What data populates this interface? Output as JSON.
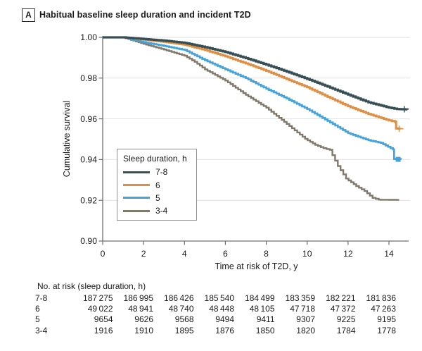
{
  "panel": {
    "label": "A",
    "title": "Habitual baseline sleep duration and incident T2D"
  },
  "chart_data": {
    "type": "line",
    "subtype": "kaplan-meier-cumulative-survival",
    "title": "Habitual baseline sleep duration and incident T2D",
    "xlabel": "Time at risk of T2D, y",
    "ylabel": "Cumulative survival",
    "xlim": [
      0,
      15.05
    ],
    "ylim": [
      0.9,
      1.0
    ],
    "x_ticks": [
      0,
      2,
      4,
      6,
      8,
      10,
      12,
      14
    ],
    "y_ticks": [
      "1.00",
      "0.98",
      "0.96",
      "0.94",
      "0.92",
      "0.90"
    ],
    "grid": "horizontal",
    "colors": {
      "axis": "#6f6f6f",
      "gridline": "#e2e2e2",
      "text": "#1a1a1a"
    },
    "legend": {
      "title": "Sleep duration, h",
      "position": "inside-left-middle"
    },
    "series": [
      {
        "name": "3-4",
        "color": "#80796B",
        "width": 2.4,
        "marker": "none",
        "points": [
          [
            0,
            1
          ],
          [
            1,
            1
          ],
          [
            1.5,
            0.9984
          ],
          [
            2,
            0.9968
          ],
          [
            3,
            0.994
          ],
          [
            4,
            0.991
          ],
          [
            4.5,
            0.988
          ],
          [
            5,
            0.9843
          ],
          [
            6,
            0.9788
          ],
          [
            7,
            0.9718
          ],
          [
            8,
            0.9655
          ],
          [
            9,
            0.9575
          ],
          [
            9.9,
            0.9502
          ],
          [
            10.4,
            0.9472
          ],
          [
            10.8,
            0.9456
          ],
          [
            11.1,
            0.9448
          ],
          [
            11.5,
            0.9368
          ],
          [
            11.9,
            0.9307
          ],
          [
            12.4,
            0.927
          ],
          [
            12.8,
            0.9246
          ],
          [
            13.2,
            0.9212
          ],
          [
            13.5,
            0.9203
          ],
          [
            14.5,
            0.9202
          ]
        ]
      },
      {
        "name": "5",
        "color": "#45A3DC",
        "width": 2.7,
        "marker": "square",
        "marker_at": [
          14.45,
          0.9401
        ],
        "points": [
          [
            0,
            1
          ],
          [
            1,
            1
          ],
          [
            1.5,
            0.9988
          ],
          [
            2,
            0.9976
          ],
          [
            3,
            0.9958
          ],
          [
            4,
            0.9938
          ],
          [
            5,
            0.9888
          ],
          [
            6,
            0.9843
          ],
          [
            7,
            0.98
          ],
          [
            8,
            0.9748
          ],
          [
            9,
            0.97
          ],
          [
            10,
            0.9648
          ],
          [
            11,
            0.959
          ],
          [
            12,
            0.953
          ],
          [
            13,
            0.9495
          ],
          [
            13.6,
            0.9482
          ],
          [
            14.2,
            0.945
          ],
          [
            14.25,
            0.9403
          ],
          [
            14.6,
            0.9401
          ]
        ]
      },
      {
        "name": "6",
        "color": "#DF8F44",
        "width": 3.0,
        "marker": "plus",
        "marker_at": [
          14.5,
          0.9551
        ],
        "points": [
          [
            0,
            1
          ],
          [
            1,
            1
          ],
          [
            1.5,
            0.9995
          ],
          [
            2,
            0.9989
          ],
          [
            3,
            0.9978
          ],
          [
            4,
            0.9964
          ],
          [
            5,
            0.9938
          ],
          [
            6,
            0.9907
          ],
          [
            7,
            0.9872
          ],
          [
            8,
            0.9836
          ],
          [
            9,
            0.9795
          ],
          [
            10,
            0.9755
          ],
          [
            11,
            0.9708
          ],
          [
            12,
            0.9662
          ],
          [
            13,
            0.9624
          ],
          [
            14,
            0.9592
          ],
          [
            14.3,
            0.9586
          ],
          [
            14.35,
            0.9553
          ],
          [
            14.55,
            0.955
          ]
        ]
      },
      {
        "name": "7-8",
        "color": "#374E55",
        "width": 3.2,
        "marker": "plus",
        "marker_at": [
          14.75,
          0.9647
        ],
        "points": [
          [
            0,
            1
          ],
          [
            1,
            1
          ],
          [
            1.5,
            0.9996
          ],
          [
            2,
            0.9992
          ],
          [
            3,
            0.9984
          ],
          [
            4,
            0.9973
          ],
          [
            5,
            0.9952
          ],
          [
            6,
            0.9928
          ],
          [
            7,
            0.9898
          ],
          [
            8,
            0.9866
          ],
          [
            9,
            0.9832
          ],
          [
            10,
            0.9796
          ],
          [
            11,
            0.9758
          ],
          [
            12,
            0.9719
          ],
          [
            13,
            0.9681
          ],
          [
            14,
            0.9655
          ],
          [
            14.4,
            0.9648
          ],
          [
            14.9,
            0.9646
          ]
        ]
      }
    ],
    "legend_order": [
      "7-8",
      "6",
      "5",
      "3-4"
    ]
  },
  "risk_table": {
    "title": "No. at risk (sleep duration, h)",
    "rows": [
      {
        "label": "7-8",
        "values": [
          "187 275",
          "186 995",
          "186 426",
          "185 540",
          "184 499",
          "183 359",
          "182 221",
          "181 836"
        ]
      },
      {
        "label": "6",
        "values": [
          "49 022",
          "48 941",
          "48 740",
          "48 448",
          "48 105",
          "47 718",
          "47 372",
          "47 263"
        ]
      },
      {
        "label": "5",
        "values": [
          "9654",
          "9626",
          "9568",
          "9494",
          "9411",
          "9307",
          "9225",
          "9195"
        ]
      },
      {
        "label": "3-4",
        "values": [
          "1916",
          "1910",
          "1895",
          "1876",
          "1850",
          "1820",
          "1784",
          "1778"
        ]
      }
    ]
  }
}
